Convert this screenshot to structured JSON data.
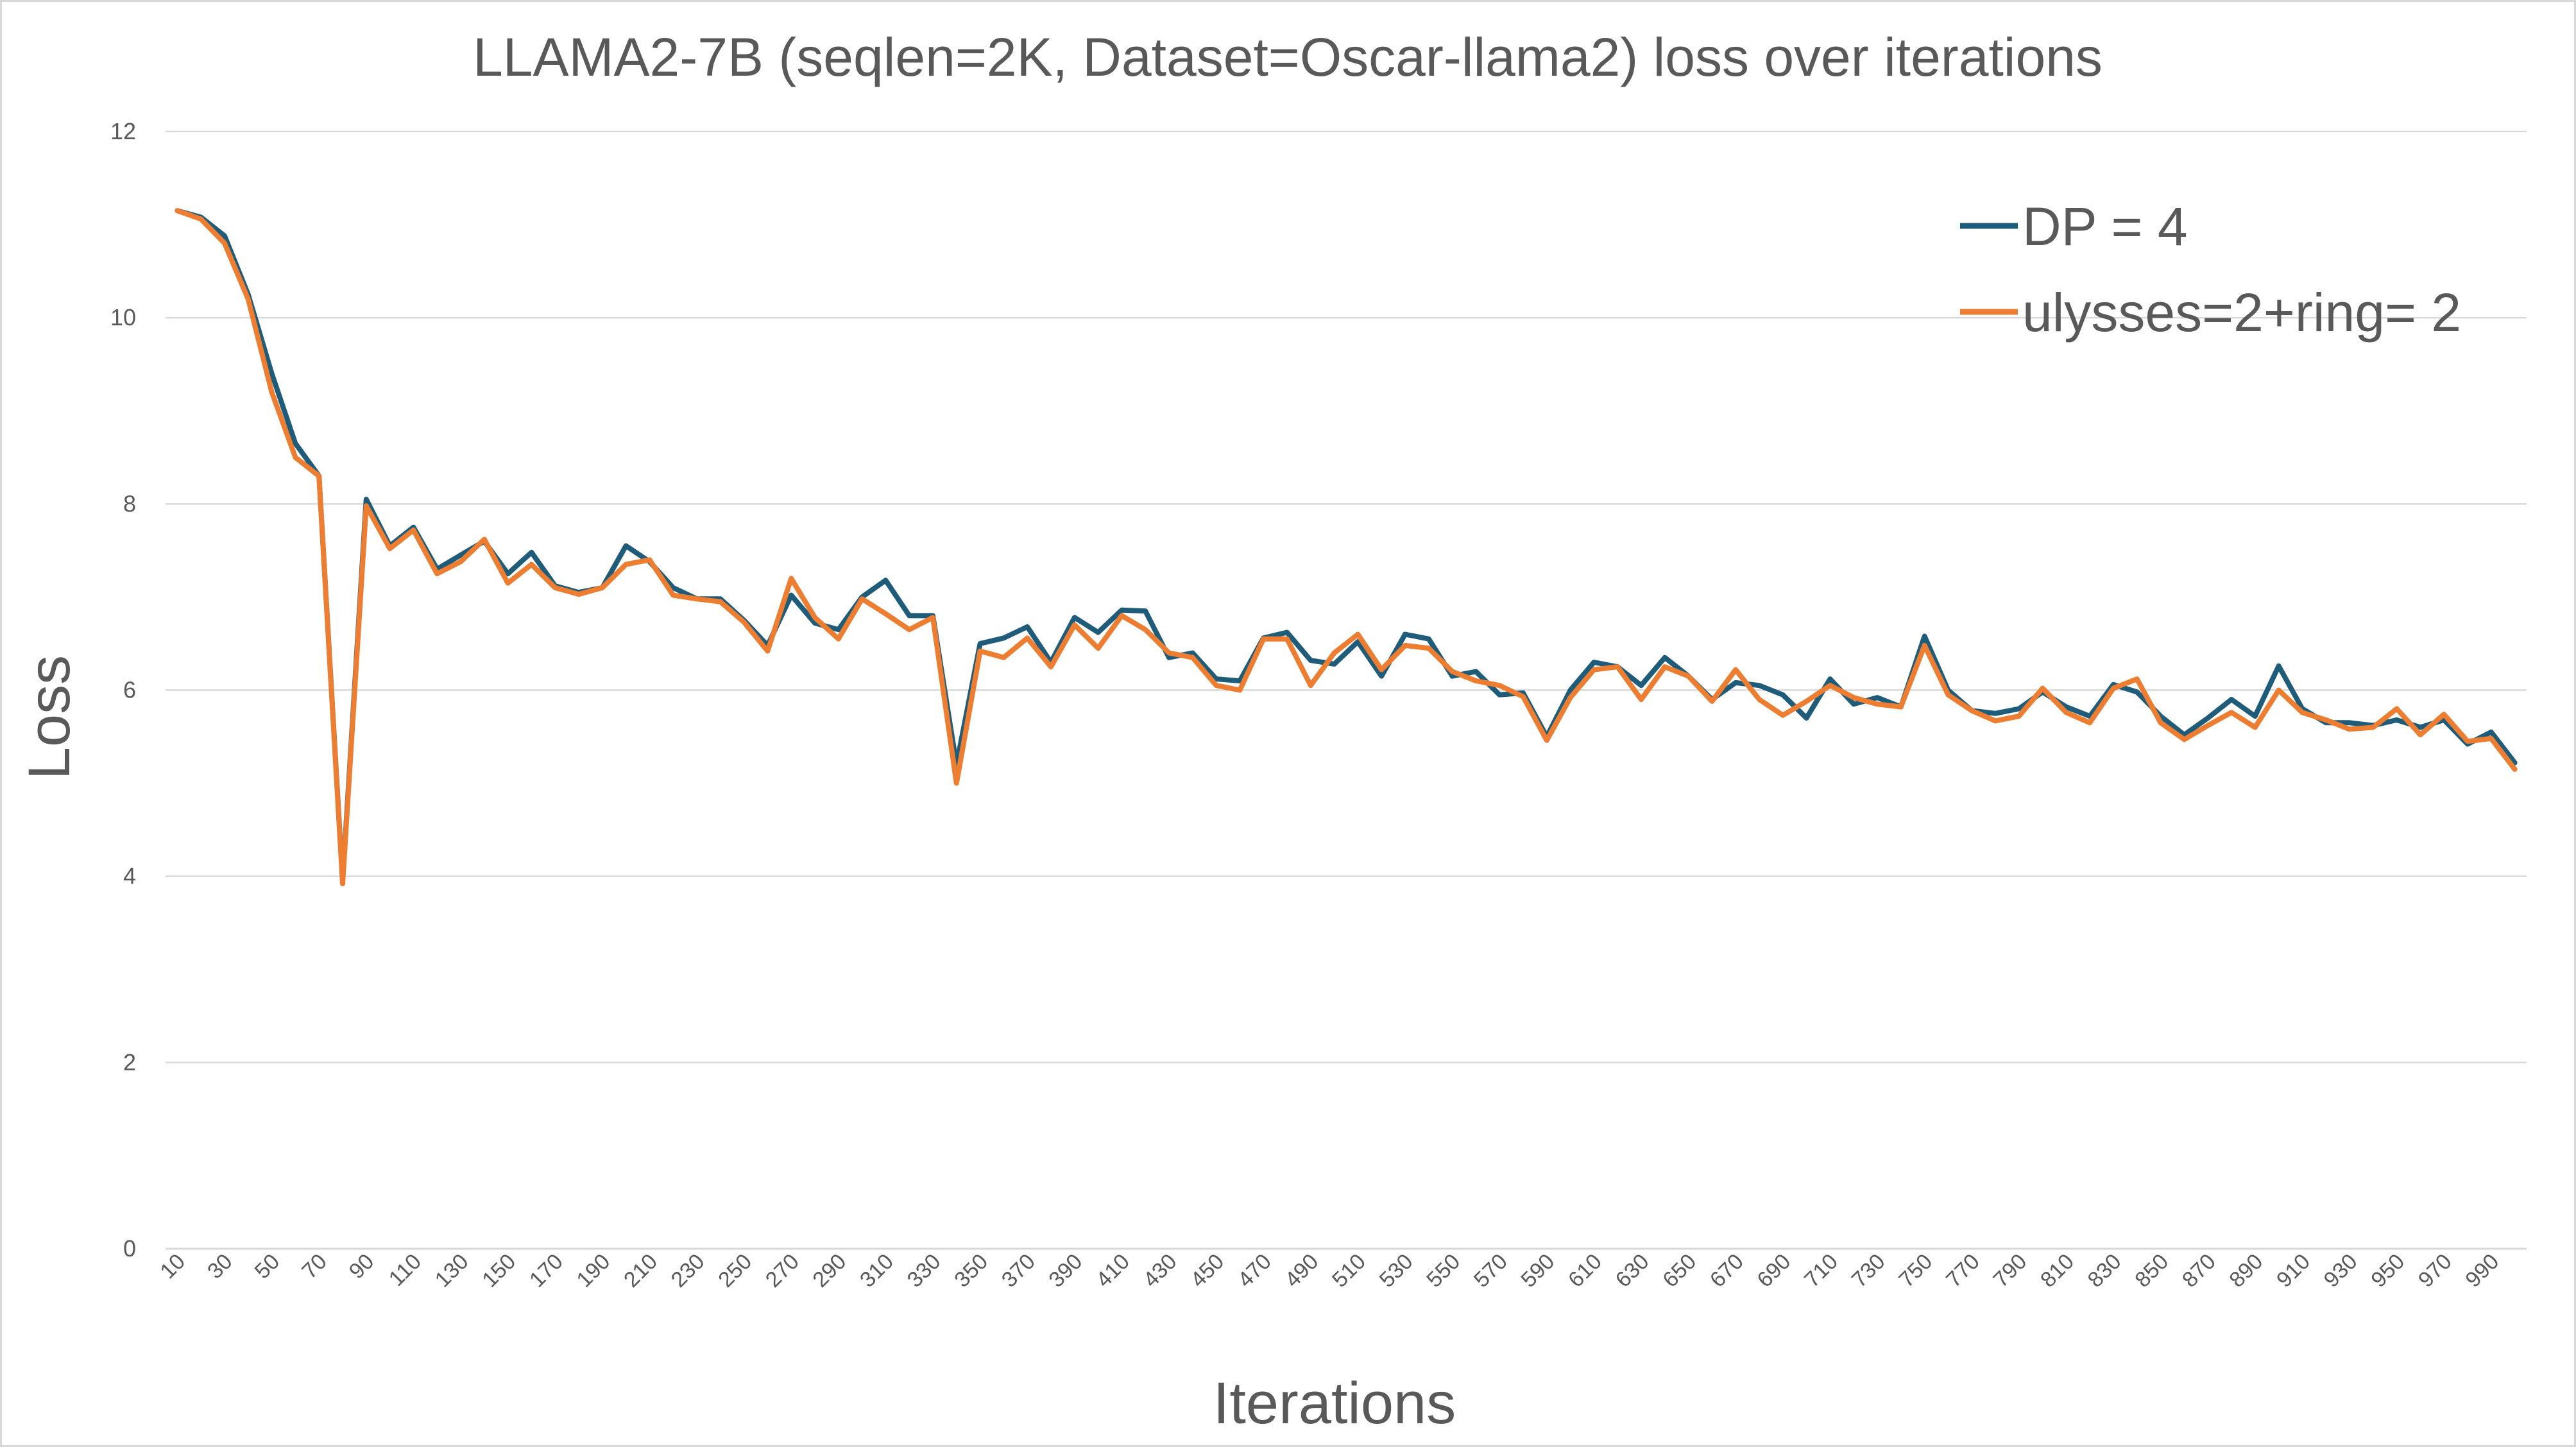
{
  "chart_data": {
    "type": "line",
    "title": "LLAMA2-7B (seqlen=2K, Dataset=Oscar-llama2)  loss over iterations",
    "xlabel": "Iterations",
    "ylabel": "Loss",
    "ylim": [
      0,
      12
    ],
    "yticks": [
      0,
      2,
      4,
      6,
      8,
      10,
      12
    ],
    "grid": true,
    "legend_position": "top-right",
    "x": [
      10,
      20,
      30,
      40,
      50,
      60,
      70,
      80,
      90,
      100,
      110,
      120,
      130,
      140,
      150,
      160,
      170,
      180,
      190,
      200,
      210,
      220,
      230,
      240,
      250,
      260,
      270,
      280,
      290,
      300,
      310,
      320,
      330,
      340,
      350,
      360,
      370,
      380,
      390,
      400,
      410,
      420,
      430,
      440,
      450,
      460,
      470,
      480,
      490,
      500,
      510,
      520,
      530,
      540,
      550,
      560,
      570,
      580,
      590,
      600,
      610,
      620,
      630,
      640,
      650,
      660,
      670,
      680,
      690,
      700,
      710,
      720,
      730,
      740,
      750,
      760,
      770,
      780,
      790,
      800,
      810,
      820,
      830,
      840,
      850,
      860,
      870,
      880,
      890,
      900,
      910,
      920,
      930,
      940,
      950,
      960,
      970,
      980,
      990,
      1000
    ],
    "x_tick_labels": [
      "10",
      "30",
      "50",
      "70",
      "90",
      "110",
      "130",
      "150",
      "170",
      "190",
      "210",
      "230",
      "250",
      "270",
      "290",
      "310",
      "330",
      "350",
      "370",
      "390",
      "410",
      "430",
      "450",
      "470",
      "490",
      "510",
      "530",
      "550",
      "570",
      "590",
      "610",
      "630",
      "650",
      "670",
      "690",
      "710",
      "730",
      "750",
      "770",
      "790",
      "810",
      "830",
      "850",
      "870",
      "890",
      "910",
      "930",
      "950",
      "970",
      "990"
    ],
    "series": [
      {
        "name": "DP = 4",
        "color": "#1f5c7a",
        "values": [
          11.15,
          11.08,
          10.88,
          10.25,
          9.4,
          8.65,
          8.3,
          3.95,
          8.05,
          7.55,
          7.75,
          7.3,
          7.45,
          7.6,
          7.25,
          7.48,
          7.12,
          7.05,
          7.1,
          7.55,
          7.38,
          7.1,
          6.98,
          6.98,
          6.75,
          6.48,
          7.02,
          6.72,
          6.65,
          7.0,
          7.18,
          6.8,
          6.8,
          5.2,
          6.5,
          6.56,
          6.68,
          6.3,
          6.78,
          6.62,
          6.86,
          6.85,
          6.35,
          6.4,
          6.12,
          6.1,
          6.56,
          6.62,
          6.32,
          6.28,
          6.52,
          6.15,
          6.6,
          6.55,
          6.15,
          6.2,
          5.95,
          5.97,
          5.5,
          6.0,
          6.3,
          6.25,
          6.05,
          6.35,
          6.15,
          5.9,
          6.08,
          6.05,
          5.95,
          5.7,
          6.12,
          5.85,
          5.92,
          5.82,
          6.58,
          6.0,
          5.78,
          5.75,
          5.8,
          5.98,
          5.82,
          5.72,
          6.06,
          5.98,
          5.72,
          5.52,
          5.7,
          5.9,
          5.72,
          6.26,
          5.8,
          5.65,
          5.65,
          5.62,
          5.68,
          5.6,
          5.68,
          5.42,
          5.55,
          5.22
        ]
      },
      {
        "name": "ulysses=2+ring= 2",
        "color": "#ed7d31",
        "values": [
          11.15,
          11.06,
          10.8,
          10.2,
          9.2,
          8.5,
          8.3,
          3.92,
          7.98,
          7.52,
          7.72,
          7.25,
          7.38,
          7.62,
          7.15,
          7.35,
          7.1,
          7.03,
          7.1,
          7.35,
          7.4,
          7.02,
          6.98,
          6.95,
          6.73,
          6.42,
          7.2,
          6.78,
          6.55,
          6.98,
          6.82,
          6.65,
          6.78,
          5.0,
          6.42,
          6.35,
          6.56,
          6.25,
          6.7,
          6.45,
          6.8,
          6.65,
          6.4,
          6.35,
          6.05,
          6.0,
          6.55,
          6.55,
          6.05,
          6.4,
          6.6,
          6.22,
          6.48,
          6.45,
          6.2,
          6.1,
          6.05,
          5.93,
          5.46,
          5.92,
          6.22,
          6.25,
          5.9,
          6.25,
          6.15,
          5.88,
          6.22,
          5.9,
          5.73,
          5.88,
          6.05,
          5.92,
          5.85,
          5.82,
          6.48,
          5.95,
          5.78,
          5.67,
          5.72,
          6.02,
          5.76,
          5.65,
          6.02,
          6.12,
          5.65,
          5.47,
          5.62,
          5.76,
          5.6,
          6.0,
          5.76,
          5.68,
          5.58,
          5.6,
          5.8,
          5.52,
          5.74,
          5.45,
          5.48,
          5.15
        ]
      }
    ]
  }
}
